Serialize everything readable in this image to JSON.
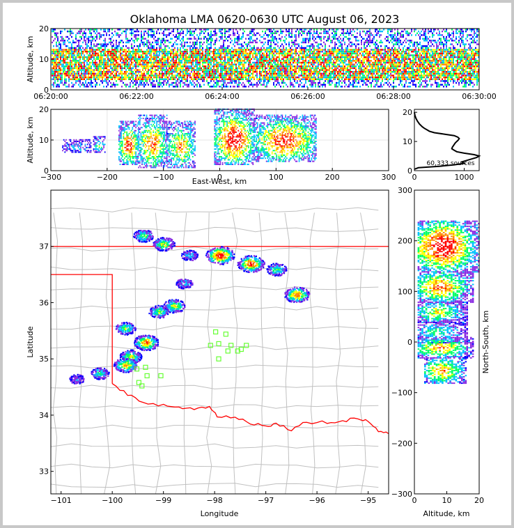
{
  "title": "Oklahoma LMA 0620-0630 UTC August 06, 2023",
  "colors": {
    "state_border": "#ff0000",
    "county_lines": "#c0c0c0",
    "stations": "#66ff33",
    "density_scale": [
      "#0000ff",
      "#8a2be2",
      "#00c0ff",
      "#00ff66",
      "#ffff00",
      "#ff8800",
      "#ff0000"
    ]
  },
  "chart_data": [
    {
      "panel": "altitude-vs-time",
      "type": "heatmap",
      "xlabel": "",
      "ylabel": "Altitude, km",
      "x_ticks": [
        "06:20:00",
        "06:22:00",
        "06:24:00",
        "06:26:00",
        "06:28:00",
        "06:30:00"
      ],
      "ylim": [
        0,
        20
      ],
      "y_ticks": [
        0,
        10,
        20
      ],
      "altitude_band_km": [
        1,
        20
      ],
      "densest_band_km": [
        3,
        13
      ]
    },
    {
      "panel": "altitude-vs-east-west",
      "type": "heatmap",
      "xlabel": "East-West, km",
      "ylabel": "Altitude, km",
      "xlim": [
        -300,
        300
      ],
      "x_ticks": [
        -300,
        -200,
        -100,
        0,
        100,
        200,
        300
      ],
      "ylim": [
        0,
        20
      ],
      "y_ticks": [
        0,
        10,
        20
      ],
      "clusters": [
        {
          "x_range": [
            -280,
            -230
          ],
          "z_range": [
            6,
            10
          ],
          "intensity": 0.2
        },
        {
          "x_range": [
            -225,
            -205
          ],
          "z_range": [
            6,
            11
          ],
          "intensity": 0.4
        },
        {
          "x_range": [
            -180,
            -145
          ],
          "z_range": [
            2,
            16
          ],
          "intensity": 0.9
        },
        {
          "x_range": [
            -145,
            -95
          ],
          "z_range": [
            1,
            18
          ],
          "intensity": 0.8
        },
        {
          "x_range": [
            -95,
            -45
          ],
          "z_range": [
            1,
            16
          ],
          "intensity": 0.7
        },
        {
          "x_range": [
            -10,
            60
          ],
          "z_range": [
            2,
            20
          ],
          "intensity": 1.0
        },
        {
          "x_range": [
            60,
            170
          ],
          "z_range": [
            3,
            18
          ],
          "intensity": 0.9
        }
      ]
    },
    {
      "panel": "altitude-histogram",
      "type": "line",
      "annotation": "60,333 sources",
      "xlim": [
        0,
        1300
      ],
      "x_ticks": [
        0,
        1000
      ],
      "ylim": [
        0,
        21
      ],
      "y_ticks": [
        0,
        10,
        20
      ],
      "profile": {
        "altitude_km": [
          0.5,
          1,
          1.5,
          2,
          2.5,
          3,
          3.5,
          4,
          4.5,
          5,
          5.5,
          6,
          6.5,
          7,
          7.5,
          8,
          8.5,
          9,
          9.5,
          10,
          10.5,
          11,
          11.5,
          12,
          12.5,
          13,
          13.5,
          14,
          14.5,
          15,
          16,
          17,
          18,
          19,
          20
        ],
        "count": [
          0,
          80,
          500,
          800,
          1000,
          950,
          1050,
          1150,
          1250,
          1300,
          1200,
          1000,
          850,
          800,
          750,
          760,
          780,
          800,
          820,
          850,
          880,
          900,
          870,
          800,
          600,
          400,
          300,
          250,
          200,
          160,
          100,
          60,
          30,
          10,
          0
        ]
      }
    },
    {
      "panel": "plan-view",
      "type": "heatmap",
      "xlabel": "Longitude",
      "ylabel": "Latitude",
      "xlim": [
        -101.2,
        -94.6
      ],
      "x_ticks": [
        -101,
        -100,
        -99,
        -98,
        -97,
        -96,
        -95
      ],
      "ylim": [
        32.6,
        38.0
      ],
      "y_ticks": [
        33,
        34,
        35,
        36,
        37
      ],
      "clusters": [
        {
          "lon": -99.4,
          "lat": 37.2,
          "intensity": 0.5
        },
        {
          "lon": -99.0,
          "lat": 37.05,
          "intensity": 0.6
        },
        {
          "lon": -98.5,
          "lat": 36.85,
          "intensity": 0.3
        },
        {
          "lon": -98.6,
          "lat": 36.35,
          "intensity": 0.3
        },
        {
          "lon": -97.9,
          "lat": 36.85,
          "intensity": 1.0
        },
        {
          "lon": -97.3,
          "lat": 36.7,
          "intensity": 0.9
        },
        {
          "lon": -96.8,
          "lat": 36.6,
          "intensity": 0.5
        },
        {
          "lon": -96.4,
          "lat": 36.15,
          "intensity": 0.8
        },
        {
          "lon": -98.8,
          "lat": 35.95,
          "intensity": 0.6
        },
        {
          "lon": -99.1,
          "lat": 35.85,
          "intensity": 0.5
        },
        {
          "lon": -99.75,
          "lat": 35.55,
          "intensity": 0.5
        },
        {
          "lon": -99.35,
          "lat": 35.3,
          "intensity": 0.8
        },
        {
          "lon": -99.65,
          "lat": 35.05,
          "intensity": 0.6
        },
        {
          "lon": -99.75,
          "lat": 34.9,
          "intensity": 0.7
        },
        {
          "lon": -100.25,
          "lat": 34.75,
          "intensity": 0.4
        },
        {
          "lon": -100.7,
          "lat": 34.65,
          "intensity": 0.2
        }
      ],
      "stations": [
        {
          "lon": -97.98,
          "lat": 35.48
        },
        {
          "lon": -97.78,
          "lat": 35.44
        },
        {
          "lon": -98.08,
          "lat": 35.24
        },
        {
          "lon": -97.92,
          "lat": 35.27
        },
        {
          "lon": -97.68,
          "lat": 35.24
        },
        {
          "lon": -97.38,
          "lat": 35.24
        },
        {
          "lon": -97.48,
          "lat": 35.17
        },
        {
          "lon": -97.74,
          "lat": 35.14
        },
        {
          "lon": -97.55,
          "lat": 35.14
        },
        {
          "lon": -97.92,
          "lat": 35.0
        },
        {
          "lon": -99.35,
          "lat": 34.85
        },
        {
          "lon": -99.52,
          "lat": 34.82
        },
        {
          "lon": -99.32,
          "lat": 34.7
        },
        {
          "lon": -99.05,
          "lat": 34.7
        },
        {
          "lon": -99.48,
          "lat": 34.58
        },
        {
          "lon": -99.42,
          "lat": 34.52
        }
      ]
    },
    {
      "panel": "north-south-vs-altitude",
      "type": "heatmap",
      "xlabel": "Altitude, km",
      "ylabel": "North-South, km",
      "xlim": [
        0,
        20
      ],
      "x_ticks": [
        0,
        10,
        20
      ],
      "ylim": [
        -300,
        300
      ],
      "y_ticks": [
        -300,
        -200,
        -100,
        0,
        100,
        200,
        300
      ],
      "clusters": [
        {
          "ns_range": [
            140,
            240
          ],
          "z_range": [
            1,
            20
          ],
          "intensity": 1.0
        },
        {
          "ns_range": [
            80,
            140
          ],
          "z_range": [
            1,
            18
          ],
          "intensity": 0.8
        },
        {
          "ns_range": [
            40,
            80
          ],
          "z_range": [
            1,
            16
          ],
          "intensity": 0.6
        },
        {
          "ns_range": [
            0,
            40
          ],
          "z_range": [
            1,
            16
          ],
          "intensity": 0.4
        },
        {
          "ns_range": [
            -30,
            10
          ],
          "z_range": [
            1,
            18
          ],
          "intensity": 0.7
        },
        {
          "ns_range": [
            -80,
            -30
          ],
          "z_range": [
            3,
            16
          ],
          "intensity": 0.7
        }
      ]
    }
  ]
}
